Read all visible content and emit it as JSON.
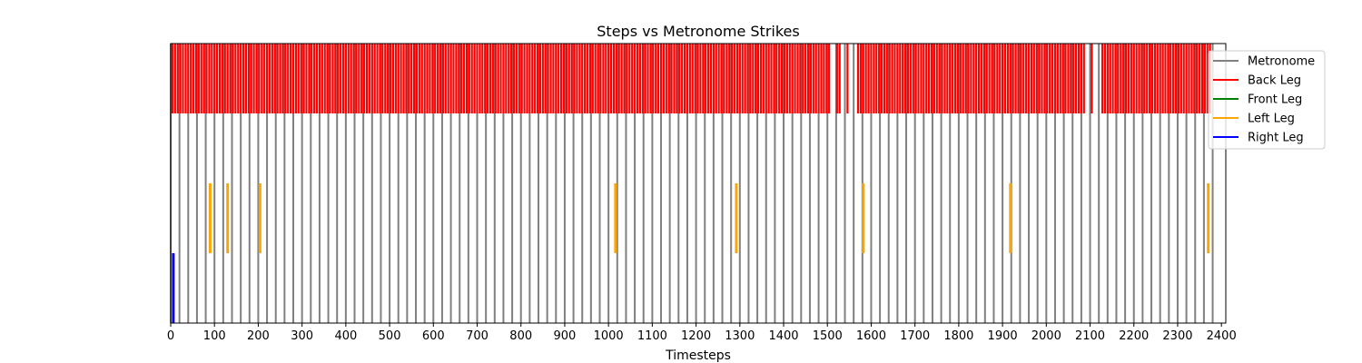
{
  "chart_data": {
    "type": "event-plot",
    "title": "Steps vs Metronome Strikes",
    "xlabel": "Timesteps",
    "ylabel": "",
    "xlim": [
      0,
      2410
    ],
    "xticks": [
      0,
      100,
      200,
      300,
      400,
      500,
      600,
      700,
      800,
      900,
      1000,
      1100,
      1200,
      1300,
      1400,
      1500,
      1600,
      1700,
      1800,
      1900,
      2000,
      2100,
      2200,
      2300,
      2400
    ],
    "grid": false,
    "legend_position": "upper-right-outside",
    "rows": [
      {
        "name": "Back Leg",
        "row": "top"
      },
      {
        "name": "Front Leg",
        "row": "second"
      },
      {
        "name": "Left Leg",
        "row": "third"
      },
      {
        "name": "Right Leg",
        "row": "bottom"
      }
    ],
    "series": [
      {
        "name": "Metronome",
        "color": "#808080",
        "span": "full",
        "start": 0,
        "interval": 20,
        "count": 120
      },
      {
        "name": "Back Leg",
        "color": "#ff0000",
        "span": "top",
        "start": 4,
        "interval": 6,
        "count": 396,
        "gaps": [
          [
            1508,
            1520
          ],
          [
            1530,
            1542
          ],
          [
            1552,
            1566
          ],
          [
            2088,
            2100
          ],
          [
            2110,
            2122
          ]
        ]
      },
      {
        "name": "Front Leg",
        "color": "#008000",
        "span": "second",
        "x": []
      },
      {
        "name": "Left Leg",
        "color": "#ffa500",
        "span": "third",
        "x": [
          90,
          130,
          204,
          1016,
          1292,
          1582,
          1918,
          2370
        ]
      },
      {
        "name": "Right Leg",
        "color": "#0000ff",
        "span": "bottom",
        "x": [
          6
        ]
      }
    ]
  }
}
